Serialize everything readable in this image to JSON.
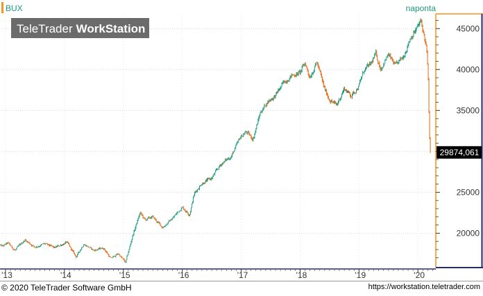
{
  "chart_data": {
    "type": "candlestick",
    "instrument": "BUX",
    "period_label": "naponta",
    "watermark": {
      "part1": "TeleTrader",
      "part2": "WorkStation"
    },
    "last_value_label": "29874,061",
    "last_value": 29874.061,
    "x_tick_labels": [
      "'13",
      "'14",
      "'15",
      "'16",
      "'17",
      "'18",
      "'19",
      "'20"
    ],
    "y_tick_labels": [
      "20000",
      "25000",
      "30000",
      "35000",
      "40000",
      "45000"
    ],
    "y_ticks": [
      20000,
      25000,
      30000,
      35000,
      40000,
      45000
    ],
    "ylim": [
      15800,
      46800
    ],
    "xlim": [
      2012.93,
      2020.28
    ],
    "grid": true,
    "colors": {
      "up": "#1a9a7c",
      "down": "#e8640c",
      "accent": "#f7941d",
      "axis_right": "#1f2d7a",
      "watermark_bg": "#6b6b6b"
    },
    "price_path": [
      [
        "2012-11-15",
        18600
      ],
      [
        "2012-12-15",
        18400
      ],
      [
        "2013-01-15",
        18800
      ],
      [
        "2013-03-01",
        17900
      ],
      [
        "2013-05-01",
        19200
      ],
      [
        "2013-07-01",
        18300
      ],
      [
        "2013-09-01",
        18700
      ],
      [
        "2013-11-01",
        18200
      ],
      [
        "2014-01-15",
        18900
      ],
      [
        "2014-03-15",
        17100
      ],
      [
        "2014-05-01",
        18700
      ],
      [
        "2014-07-01",
        17900
      ],
      [
        "2014-09-01",
        18200
      ],
      [
        "2014-10-15",
        16900
      ],
      [
        "2014-12-01",
        17500
      ],
      [
        "2015-01-15",
        16400
      ],
      [
        "2015-03-01",
        19800
      ],
      [
        "2015-04-15",
        22500
      ],
      [
        "2015-05-15",
        21600
      ],
      [
        "2015-07-01",
        22000
      ],
      [
        "2015-09-01",
        20700
      ],
      [
        "2015-11-01",
        21800
      ],
      [
        "2015-12-31",
        23200
      ],
      [
        "2016-02-15",
        22300
      ],
      [
        "2016-03-15",
        24800
      ],
      [
        "2016-05-01",
        26100
      ],
      [
        "2016-07-01",
        26700
      ],
      [
        "2016-09-01",
        28500
      ],
      [
        "2016-11-01",
        29400
      ],
      [
        "2016-12-31",
        31800
      ],
      [
        "2017-02-01",
        32400
      ],
      [
        "2017-03-15",
        31500
      ],
      [
        "2017-05-01",
        34800
      ],
      [
        "2017-06-15",
        36100
      ],
      [
        "2017-08-01",
        36800
      ],
      [
        "2017-09-15",
        38200
      ],
      [
        "2017-11-01",
        39200
      ],
      [
        "2017-12-31",
        39600
      ],
      [
        "2018-02-01",
        40800
      ],
      [
        "2018-03-01",
        39100
      ],
      [
        "2018-04-15",
        40900
      ],
      [
        "2018-06-01",
        37600
      ],
      [
        "2018-07-01",
        36400
      ],
      [
        "2018-08-15",
        35600
      ],
      [
        "2018-10-01",
        37700
      ],
      [
        "2018-11-15",
        36800
      ],
      [
        "2018-12-31",
        38000
      ],
      [
        "2019-02-01",
        39900
      ],
      [
        "2019-03-15",
        40600
      ],
      [
        "2019-04-15",
        41900
      ],
      [
        "2019-05-15",
        40100
      ],
      [
        "2019-07-01",
        41800
      ],
      [
        "2019-08-15",
        40400
      ],
      [
        "2019-10-01",
        41500
      ],
      [
        "2019-11-15",
        43900
      ],
      [
        "2019-12-31",
        45200
      ],
      [
        "2020-01-20",
        45900
      ],
      [
        "2020-02-10",
        44000
      ],
      [
        "2020-02-24",
        42500
      ],
      [
        "2020-03-05",
        38800
      ],
      [
        "2020-03-12",
        32000
      ],
      [
        "2020-03-18",
        29874.061
      ]
    ]
  },
  "footer": {
    "copyright": "© 2020 TeleTrader Software GmbH",
    "url": "https://workstation.teletrader.com"
  }
}
